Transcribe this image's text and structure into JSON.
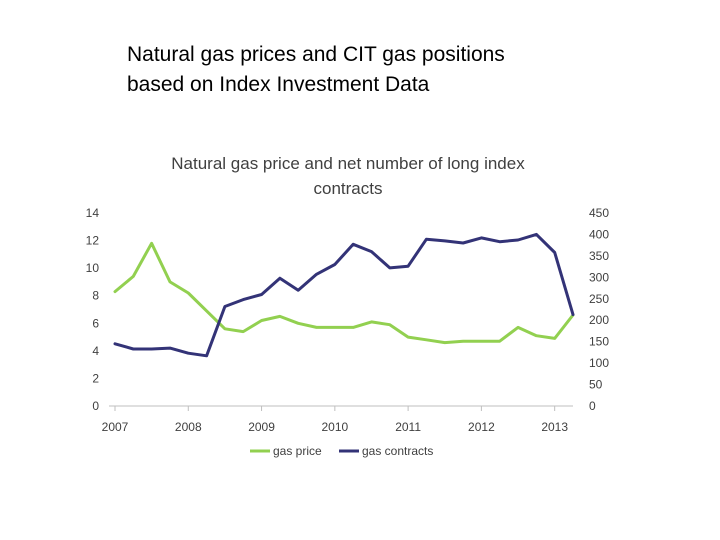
{
  "slide": {
    "title_line1": "Natural gas prices and CIT gas positions",
    "title_line2": "based on Index Investment Data"
  },
  "colors": {
    "gas_price": "#92D050",
    "gas_contracts": "#333377",
    "axis": "#BFBFBF",
    "text": "#404040"
  },
  "chart_data": {
    "type": "line",
    "title": "Natural gas price and net number of long index contracts",
    "title_lines": [
      "Natural gas price and net number of long index",
      "contracts"
    ],
    "x": [
      2007.0,
      2007.25,
      2007.5,
      2007.75,
      2008.0,
      2008.25,
      2008.5,
      2008.75,
      2009.0,
      2009.25,
      2009.5,
      2009.75,
      2010.0,
      2010.25,
      2010.5,
      2010.75,
      2011.0,
      2011.25,
      2011.5,
      2011.75,
      2012.0,
      2012.25,
      2012.5,
      2012.75,
      2013.0,
      2013.25
    ],
    "xlim": [
      2007.0,
      2013.25
    ],
    "x_ticks": [
      2007,
      2008,
      2009,
      2010,
      2011,
      2012,
      2013
    ],
    "x_tick_labels": [
      "2007",
      "2008",
      "2009",
      "2010",
      "2011",
      "2012",
      "2013"
    ],
    "y_left": {
      "lim": [
        0,
        14
      ],
      "ticks": [
        0,
        2,
        4,
        6,
        8,
        10,
        12,
        14
      ],
      "tick_labels": [
        "0",
        "2",
        "4",
        "6",
        "8",
        "10",
        "12",
        "14"
      ]
    },
    "y_right": {
      "lim": [
        0,
        450
      ],
      "ticks": [
        0,
        50,
        100,
        150,
        200,
        250,
        300,
        350,
        400,
        450
      ],
      "tick_labels": [
        "0",
        "50",
        "100",
        "150",
        "200",
        "250",
        "300",
        "350",
        "400",
        "450"
      ]
    },
    "series": [
      {
        "name": "gas price",
        "axis": "left",
        "values": [
          8.3,
          9.4,
          11.8,
          9.0,
          8.2,
          6.9,
          5.6,
          5.4,
          6.2,
          6.5,
          6.0,
          5.7,
          5.7,
          5.7,
          6.1,
          5.9,
          5.0,
          4.8,
          4.6,
          4.7,
          4.7,
          4.7,
          5.7,
          5.1,
          4.9,
          6.6
        ]
      },
      {
        "name": "gas contracts",
        "axis": "right",
        "values": [
          145,
          133,
          133,
          135,
          123,
          117,
          232,
          248,
          260,
          298,
          270,
          307,
          330,
          377,
          360,
          322,
          326,
          389,
          385,
          380,
          392,
          383,
          387,
          400,
          358,
          213
        ]
      }
    ],
    "legend": {
      "position": "bottom",
      "entries": [
        "gas price",
        "gas contracts"
      ]
    },
    "grid": false
  }
}
